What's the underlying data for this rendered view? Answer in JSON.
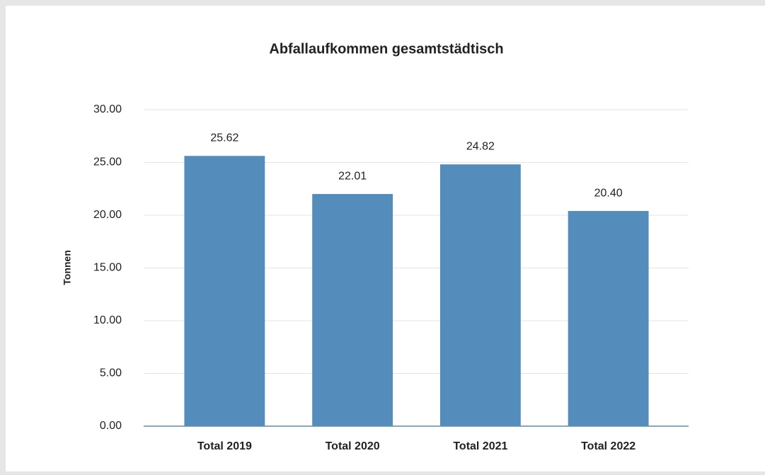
{
  "chart_data": {
    "type": "bar",
    "title": "Abfallaufkommen gesamtstädtisch",
    "ylabel": "Tonnen",
    "categories": [
      "Total 2019",
      "Total 2020",
      "Total 2021",
      "Total 2022"
    ],
    "values": [
      25.62,
      22.01,
      24.82,
      20.4
    ],
    "value_labels": [
      "25.62",
      "22.01",
      "24.82",
      "20.40"
    ],
    "color": "#548dbb",
    "ylim": [
      0,
      30
    ],
    "yticks": [
      {
        "value": 0,
        "label": "0.00"
      },
      {
        "value": 5,
        "label": "5.00"
      },
      {
        "value": 10,
        "label": "10.00"
      },
      {
        "value": 15,
        "label": "15.00"
      },
      {
        "value": 20,
        "label": "20.00"
      },
      {
        "value": 25,
        "label": "25.00"
      },
      {
        "value": 30,
        "label": "30.00"
      }
    ],
    "grid": true
  }
}
